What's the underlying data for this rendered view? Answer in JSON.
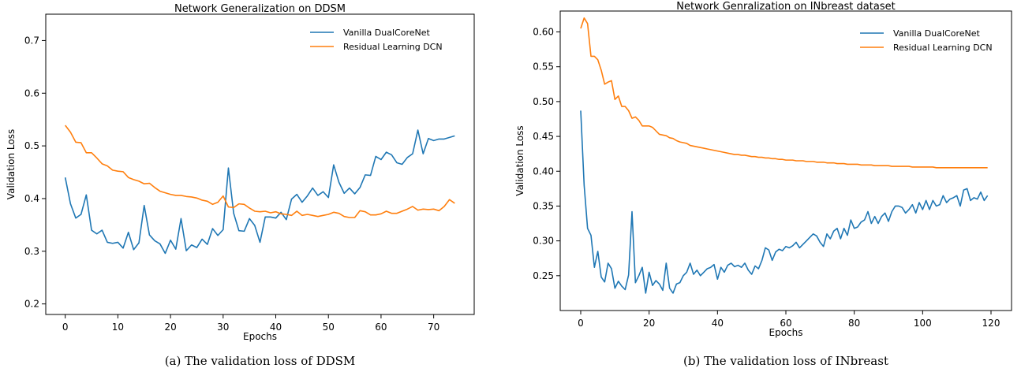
{
  "chart_data": [
    {
      "type": "line",
      "title": "Network Generalization on DDSM",
      "xlabel": "Epochs",
      "ylabel": "Validation Loss",
      "xlim": [
        -3.7,
        77.7
      ],
      "ylim": [
        0.18,
        0.75
      ],
      "xticks": [
        0,
        10,
        20,
        30,
        40,
        50,
        60,
        70
      ],
      "yticks": [
        0.2,
        0.3,
        0.4,
        0.5,
        0.6,
        0.7
      ],
      "legend": "top-right",
      "grid": false,
      "caption": "(a)  The validation loss of DDSM",
      "series": [
        {
          "name": "Vanilla DualCoreNet",
          "color": "#1f77b4",
          "x": [
            0,
            1,
            2,
            3,
            4,
            5,
            6,
            7,
            8,
            9,
            10,
            11,
            12,
            13,
            14,
            15,
            16,
            17,
            18,
            19,
            20,
            21,
            22,
            23,
            24,
            25,
            26,
            27,
            28,
            29,
            30,
            31,
            32,
            33,
            34,
            35,
            36,
            37,
            38,
            39,
            40,
            41,
            42,
            43,
            44,
            45,
            46,
            47,
            48,
            49,
            50,
            51,
            52,
            53,
            54,
            55,
            56,
            57,
            58,
            59,
            60,
            61,
            62,
            63,
            64,
            65,
            66,
            67,
            68,
            69,
            70,
            71,
            72,
            73,
            74
          ],
          "values": [
            0.44,
            0.39,
            0.363,
            0.37,
            0.407,
            0.34,
            0.333,
            0.34,
            0.317,
            0.315,
            0.317,
            0.306,
            0.336,
            0.303,
            0.316,
            0.387,
            0.331,
            0.32,
            0.314,
            0.296,
            0.321,
            0.304,
            0.362,
            0.301,
            0.312,
            0.307,
            0.323,
            0.313,
            0.343,
            0.33,
            0.341,
            0.458,
            0.372,
            0.339,
            0.338,
            0.362,
            0.349,
            0.317,
            0.365,
            0.365,
            0.363,
            0.374,
            0.36,
            0.399,
            0.408,
            0.393,
            0.405,
            0.42,
            0.406,
            0.413,
            0.402,
            0.464,
            0.431,
            0.41,
            0.42,
            0.409,
            0.421,
            0.445,
            0.444,
            0.48,
            0.474,
            0.488,
            0.483,
            0.468,
            0.465,
            0.478,
            0.485,
            0.53,
            0.485,
            0.514,
            0.51,
            0.513,
            0.513,
            0.516,
            0.519
          ]
        },
        {
          "name": "Residual Learning DCN",
          "color": "#ff7f0e",
          "x": [
            0,
            1,
            2,
            3,
            4,
            5,
            6,
            7,
            8,
            9,
            10,
            11,
            12,
            13,
            14,
            15,
            16,
            17,
            18,
            19,
            20,
            21,
            22,
            23,
            24,
            25,
            26,
            27,
            28,
            29,
            30,
            31,
            32,
            33,
            34,
            35,
            36,
            37,
            38,
            39,
            40,
            41,
            42,
            43,
            44,
            45,
            46,
            47,
            48,
            49,
            50,
            51,
            52,
            53,
            54,
            55,
            56,
            57,
            58,
            59,
            60,
            61,
            62,
            63,
            64,
            65,
            66,
            67,
            68,
            69,
            70,
            71,
            72,
            73,
            74
          ],
          "values": [
            0.539,
            0.526,
            0.507,
            0.506,
            0.487,
            0.487,
            0.477,
            0.466,
            0.462,
            0.454,
            0.452,
            0.451,
            0.44,
            0.436,
            0.433,
            0.428,
            0.429,
            0.421,
            0.414,
            0.411,
            0.408,
            0.406,
            0.406,
            0.404,
            0.403,
            0.401,
            0.397,
            0.395,
            0.389,
            0.393,
            0.405,
            0.384,
            0.383,
            0.39,
            0.389,
            0.382,
            0.376,
            0.375,
            0.376,
            0.373,
            0.375,
            0.371,
            0.37,
            0.368,
            0.376,
            0.368,
            0.37,
            0.368,
            0.366,
            0.368,
            0.37,
            0.374,
            0.372,
            0.366,
            0.364,
            0.364,
            0.377,
            0.375,
            0.369,
            0.369,
            0.371,
            0.376,
            0.372,
            0.372,
            0.376,
            0.38,
            0.385,
            0.378,
            0.38,
            0.379,
            0.38,
            0.377,
            0.385,
            0.398,
            0.391
          ]
        }
      ]
    },
    {
      "type": "line",
      "title": "Network Genralization on INbreast dataset",
      "xlabel": "Epochs",
      "ylabel": "Validation Loss",
      "xlim": [
        -6,
        126
      ],
      "ylim": [
        0.2,
        0.63
      ],
      "xticks": [
        0,
        20,
        40,
        60,
        80,
        100,
        120
      ],
      "yticks": [
        0.25,
        0.3,
        0.35,
        0.4,
        0.45,
        0.5,
        0.55,
        0.6
      ],
      "legend": "top-right",
      "grid": false,
      "caption": "(b)  The validation loss of INbreast",
      "series": [
        {
          "name": "Vanilla DualCoreNet",
          "color": "#1f77b4",
          "x": [
            0,
            1,
            2,
            3,
            4,
            5,
            6,
            7,
            8,
            9,
            10,
            11,
            12,
            13,
            14,
            15,
            16,
            17,
            18,
            19,
            20,
            21,
            22,
            23,
            24,
            25,
            26,
            27,
            28,
            29,
            30,
            31,
            32,
            33,
            34,
            35,
            36,
            37,
            38,
            39,
            40,
            41,
            42,
            43,
            44,
            45,
            46,
            47,
            48,
            49,
            50,
            51,
            52,
            53,
            54,
            55,
            56,
            57,
            58,
            59,
            60,
            61,
            62,
            63,
            64,
            65,
            66,
            67,
            68,
            69,
            70,
            71,
            72,
            73,
            74,
            75,
            76,
            77,
            78,
            79,
            80,
            81,
            82,
            83,
            84,
            85,
            86,
            87,
            88,
            89,
            90,
            91,
            92,
            93,
            94,
            95,
            96,
            97,
            98,
            99,
            100,
            101,
            102,
            103,
            104,
            105,
            106,
            107,
            108,
            109,
            110,
            111,
            112,
            113,
            114,
            115,
            116,
            117,
            118,
            119
          ],
          "values": [
            0.487,
            0.38,
            0.318,
            0.308,
            0.262,
            0.285,
            0.248,
            0.241,
            0.268,
            0.26,
            0.232,
            0.242,
            0.235,
            0.23,
            0.251,
            0.342,
            0.24,
            0.25,
            0.262,
            0.225,
            0.255,
            0.236,
            0.243,
            0.238,
            0.229,
            0.268,
            0.232,
            0.225,
            0.238,
            0.24,
            0.25,
            0.255,
            0.268,
            0.252,
            0.258,
            0.25,
            0.255,
            0.26,
            0.262,
            0.266,
            0.245,
            0.262,
            0.255,
            0.265,
            0.268,
            0.263,
            0.265,
            0.262,
            0.268,
            0.258,
            0.252,
            0.264,
            0.26,
            0.272,
            0.29,
            0.287,
            0.272,
            0.284,
            0.288,
            0.286,
            0.292,
            0.29,
            0.293,
            0.298,
            0.29,
            0.295,
            0.3,
            0.305,
            0.31,
            0.307,
            0.298,
            0.292,
            0.31,
            0.303,
            0.314,
            0.318,
            0.303,
            0.318,
            0.308,
            0.33,
            0.318,
            0.32,
            0.327,
            0.33,
            0.342,
            0.325,
            0.335,
            0.325,
            0.335,
            0.34,
            0.328,
            0.342,
            0.35,
            0.35,
            0.348,
            0.34,
            0.345,
            0.352,
            0.34,
            0.355,
            0.345,
            0.358,
            0.345,
            0.358,
            0.35,
            0.352,
            0.365,
            0.355,
            0.36,
            0.362,
            0.365,
            0.35,
            0.373,
            0.375,
            0.358,
            0.362,
            0.36,
            0.37,
            0.358,
            0.365
          ]
        },
        {
          "name": "Residual Learning DCN",
          "color": "#ff7f0e",
          "x": [
            0,
            1,
            2,
            3,
            4,
            5,
            6,
            7,
            8,
            9,
            10,
            11,
            12,
            13,
            14,
            15,
            16,
            17,
            18,
            19,
            20,
            21,
            22,
            23,
            24,
            25,
            26,
            27,
            28,
            29,
            30,
            31,
            32,
            33,
            34,
            35,
            36,
            37,
            38,
            39,
            40,
            41,
            42,
            43,
            44,
            45,
            46,
            47,
            48,
            49,
            50,
            51,
            52,
            53,
            54,
            55,
            56,
            57,
            58,
            59,
            60,
            61,
            62,
            63,
            64,
            65,
            66,
            67,
            68,
            69,
            70,
            71,
            72,
            73,
            74,
            75,
            76,
            77,
            78,
            79,
            80,
            81,
            82,
            83,
            84,
            85,
            86,
            87,
            88,
            89,
            90,
            91,
            92,
            93,
            94,
            95,
            96,
            97,
            98,
            99,
            100,
            101,
            102,
            103,
            104,
            105,
            106,
            107,
            108,
            109,
            110,
            111,
            112,
            113,
            114,
            115,
            116,
            117,
            118,
            119
          ],
          "values": [
            0.605,
            0.62,
            0.612,
            0.565,
            0.565,
            0.56,
            0.545,
            0.525,
            0.528,
            0.53,
            0.503,
            0.508,
            0.493,
            0.493,
            0.487,
            0.476,
            0.478,
            0.473,
            0.465,
            0.465,
            0.465,
            0.463,
            0.458,
            0.453,
            0.452,
            0.451,
            0.448,
            0.447,
            0.444,
            0.442,
            0.441,
            0.44,
            0.437,
            0.436,
            0.435,
            0.434,
            0.433,
            0.432,
            0.431,
            0.43,
            0.429,
            0.428,
            0.427,
            0.426,
            0.425,
            0.424,
            0.424,
            0.423,
            0.423,
            0.422,
            0.421,
            0.421,
            0.42,
            0.42,
            0.419,
            0.419,
            0.418,
            0.418,
            0.417,
            0.417,
            0.416,
            0.416,
            0.416,
            0.415,
            0.415,
            0.415,
            0.414,
            0.414,
            0.414,
            0.413,
            0.413,
            0.413,
            0.412,
            0.412,
            0.412,
            0.411,
            0.411,
            0.411,
            0.41,
            0.41,
            0.41,
            0.41,
            0.409,
            0.409,
            0.409,
            0.409,
            0.408,
            0.408,
            0.408,
            0.408,
            0.408,
            0.407,
            0.407,
            0.407,
            0.407,
            0.407,
            0.407,
            0.406,
            0.406,
            0.406,
            0.406,
            0.406,
            0.406,
            0.406,
            0.405,
            0.405,
            0.405,
            0.405,
            0.405,
            0.405,
            0.405,
            0.405,
            0.405,
            0.405,
            0.405,
            0.405,
            0.405,
            0.405,
            0.405,
            0.405
          ]
        }
      ]
    }
  ]
}
